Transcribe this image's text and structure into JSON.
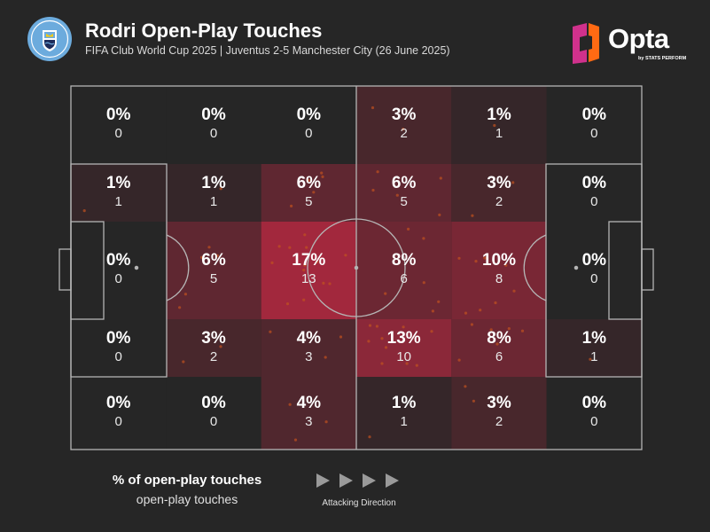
{
  "header": {
    "title": "Rodri Open-Play Touches",
    "subtitle": "FIFA Club World Cup 2025 | Juventus 2-5 Manchester City (26 June 2025)",
    "club_crest_text": "MANCHESTER CITY",
    "brand": "Opta",
    "brand_byline": "by STATS PERFORM"
  },
  "colors": {
    "background": "#262626",
    "pitch_line": "#b5b5b5",
    "heat_max": "#a2283d",
    "heat_min": "#262626",
    "touch_dot": "#c0511f",
    "opta_orange": "#ff6a13",
    "opta_magenta": "#d0318c"
  },
  "legend": {
    "title": "% of open-play touches",
    "subtitle": "open-play touches",
    "direction_label": "Attacking Direction",
    "direction_arrows": 4
  },
  "chart_data": {
    "type": "heatmap",
    "title": "Rodri Open-Play Touches",
    "description_rows": "pitch zones split into 6 columns (own goal to attacking goal, left to right) and 5 rows (top to bottom)",
    "columns": 6,
    "rows": 5,
    "percentages": [
      [
        "0%",
        "0%",
        "0%",
        "3%",
        "1%",
        "0%"
      ],
      [
        "1%",
        "1%",
        "6%",
        "6%",
        "3%",
        "0%"
      ],
      [
        "0%",
        "6%",
        "17%",
        "8%",
        "10%",
        "0%"
      ],
      [
        "0%",
        "3%",
        "4%",
        "13%",
        "8%",
        "1%"
      ],
      [
        "0%",
        "0%",
        "4%",
        "1%",
        "3%",
        "0%"
      ]
    ],
    "counts": [
      [
        "0",
        "0",
        "0",
        "2",
        "1",
        "0"
      ],
      [
        "1",
        "1",
        "5",
        "5",
        "2",
        "0"
      ],
      [
        "0",
        "5",
        "13",
        "6",
        "8",
        "0"
      ],
      [
        "0",
        "2",
        "3",
        "10",
        "6",
        "1"
      ],
      [
        "0",
        "0",
        "3",
        "1",
        "2",
        "0"
      ]
    ],
    "values": [
      [
        0,
        0,
        0,
        3,
        1,
        0
      ],
      [
        1,
        1,
        6,
        6,
        3,
        0
      ],
      [
        0,
        6,
        17,
        8,
        10,
        0
      ],
      [
        0,
        3,
        4,
        13,
        8,
        1
      ],
      [
        0,
        0,
        4,
        1,
        3,
        0
      ]
    ],
    "max_value": 17,
    "legend": "% of open-play touches",
    "attacking_direction": "left-to-right"
  }
}
